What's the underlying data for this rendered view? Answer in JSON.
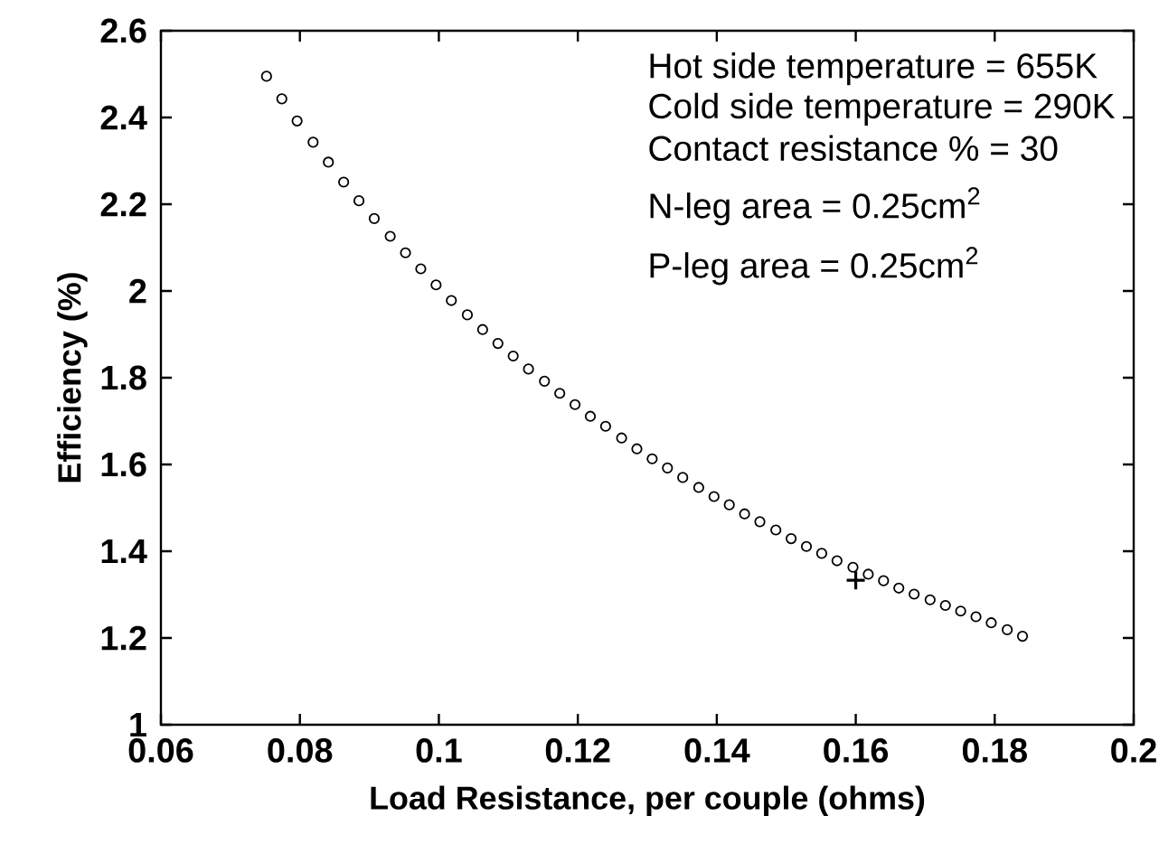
{
  "chart_data": {
    "type": "scatter",
    "xlabel": "Load Resistance, per couple (ohms)",
    "ylabel": "Efficiency (%)",
    "xlim": [
      0.06,
      0.2
    ],
    "ylim": [
      1,
      2.6
    ],
    "xticks": [
      0.06,
      0.08,
      0.1,
      0.12,
      0.14,
      0.16,
      0.18,
      0.2
    ],
    "yticks": [
      1,
      1.2,
      1.4,
      1.6,
      1.8,
      2,
      2.2,
      2.4,
      2.6
    ],
    "grid": false,
    "annotations": [
      "Hot side temperature = 655K",
      "Cold side temperature = 290K",
      "Contact resistance % = 30",
      "N-leg area = 0.25cm$^{2}$",
      "P-leg area = 0.25cm$^{2}$"
    ],
    "series": [
      {
        "color": "#000000",
        "marker": "circle",
        "x": [
          0.0752,
          0.0774,
          0.0796,
          0.0819,
          0.0841,
          0.0863,
          0.0885,
          0.0907,
          0.093,
          0.0952,
          0.0974,
          0.0996,
          0.1018,
          0.1041,
          0.1063,
          0.1085,
          0.1107,
          0.1129,
          0.1152,
          0.1174,
          0.1196,
          0.1218,
          0.124,
          0.1263,
          0.1285,
          0.1307,
          0.1329,
          0.1351,
          0.1374,
          0.1396,
          0.1418,
          0.144,
          0.1462,
          0.1485,
          0.1507,
          0.1529,
          0.1551,
          0.1573,
          0.1596,
          0.1618,
          0.164,
          0.1662,
          0.1684,
          0.1707,
          0.1729,
          0.1751,
          0.1773,
          0.1795,
          0.1818,
          0.184
        ],
        "values": [
          2.495,
          2.443,
          2.392,
          2.343,
          2.297,
          2.251,
          2.208,
          2.167,
          2.126,
          2.088,
          2.051,
          2.014,
          1.978,
          1.945,
          1.911,
          1.879,
          1.85,
          1.82,
          1.792,
          1.764,
          1.738,
          1.711,
          1.688,
          1.661,
          1.636,
          1.613,
          1.592,
          1.57,
          1.547,
          1.526,
          1.507,
          1.486,
          1.468,
          1.449,
          1.429,
          1.411,
          1.395,
          1.378,
          1.363,
          1.347,
          1.332,
          1.315,
          1.301,
          1.288,
          1.275,
          1.262,
          1.249,
          1.235,
          1.219,
          1.204
        ]
      },
      {
        "color": "#000000",
        "marker": "cross",
        "x": [
          0.16
        ],
        "values": [
          1.333
        ]
      }
    ]
  }
}
